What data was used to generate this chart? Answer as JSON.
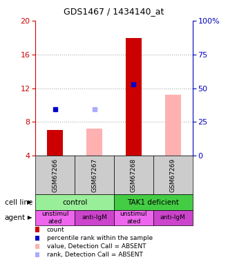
{
  "title": "GDS1467 / 1434140_at",
  "samples": [
    "GSM67266",
    "GSM67267",
    "GSM67268",
    "GSM67269"
  ],
  "ylim_left": [
    4,
    20
  ],
  "ylim_right": [
    0,
    100
  ],
  "yticks_left": [
    4,
    8,
    12,
    16,
    20
  ],
  "yticks_right": [
    0,
    25,
    50,
    75,
    100
  ],
  "ytick_labels_right": [
    "0",
    "25",
    "50",
    "75",
    "100%"
  ],
  "bar_count_values": [
    7.0,
    null,
    18.0,
    null
  ],
  "bar_count_color": "#cc0000",
  "bar_absent_values": [
    null,
    7.2,
    null,
    11.2
  ],
  "bar_absent_color": "#ffb0b0",
  "dot_present_values": [
    9.5,
    null,
    12.5,
    null
  ],
  "dot_present_color": "#0000cc",
  "dot_absent_values": [
    null,
    9.5,
    null,
    null
  ],
  "dot_absent_color": "#aaaaff",
  "bar_width": 0.4,
  "cell_line_spans": [
    [
      "control",
      0,
      2
    ],
    [
      "TAK1 deficient",
      2,
      4
    ]
  ],
  "cell_line_colors": {
    "control": "#99ee99",
    "TAK1 deficient": "#44cc44"
  },
  "agent_labels": [
    "unstimul\nated",
    "anti-IgM",
    "unstimul\nated",
    "anti-IgM"
  ],
  "agent_color_light": "#ee66ee",
  "agent_color_dark": "#cc44cc",
  "agent_is_dark": [
    false,
    true,
    false,
    true
  ],
  "sample_bg": "#cccccc",
  "grid_color": "#aaaaaa",
  "bg_color": "#ffffff",
  "left_axis_color": "#cc0000",
  "right_axis_color": "#0000bb",
  "legend_items": [
    [
      "#cc0000",
      "count"
    ],
    [
      "#0000cc",
      "percentile rank within the sample"
    ],
    [
      "#ffb0b0",
      "value, Detection Call = ABSENT"
    ],
    [
      "#aaaaff",
      "rank, Detection Call = ABSENT"
    ]
  ]
}
